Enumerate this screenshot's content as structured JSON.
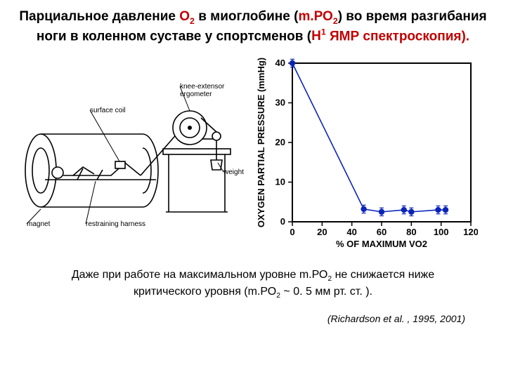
{
  "title": {
    "prefix": "Парциальное давление ",
    "o2": "О",
    "sub2": "2",
    "mid1": " в миоглобине (",
    "mpo2_m": "m.РО",
    "mid2": ") во время разгибания ноги в коленном суставе у спортсменов (",
    "h1_h": "Н",
    "h1_1": "1",
    "tail": " ЯМР спектроскопия).",
    "color_red": "#c00000"
  },
  "apparatus": {
    "labels": {
      "surface_coil": "surface coil",
      "knee_ext": "knee-extensor\nergometer",
      "weight_cup": "weight cup",
      "magnet": "magnet",
      "harness": "restraining harness"
    },
    "stroke": "#000000"
  },
  "chart": {
    "type": "scatter-line",
    "xlabel": "% OF MAXIMUM VO2",
    "ylabel": "OXYGEN PARTIAL PRESSURE  (mmHg)",
    "xlim": [
      0,
      120
    ],
    "ylim": [
      0,
      40
    ],
    "xticks": [
      0,
      20,
      40,
      60,
      80,
      100,
      120
    ],
    "yticks": [
      0,
      10,
      20,
      30,
      40
    ],
    "points": [
      {
        "x": 0,
        "y": 40
      },
      {
        "x": 48,
        "y": 3.2
      },
      {
        "x": 60,
        "y": 2.5
      },
      {
        "x": 75,
        "y": 3.0
      },
      {
        "x": 80,
        "y": 2.5
      },
      {
        "x": 98,
        "y": 3.0
      },
      {
        "x": 103,
        "y": 3.0
      }
    ],
    "err": 1.0,
    "marker_color": "#0b24b8",
    "line_color": "#0b24b8",
    "axis_color": "#000000",
    "tick_font": 13,
    "label_font": 13,
    "marker_r": 4.2,
    "line_w": 1.6,
    "err_w": 1.2
  },
  "caption": {
    "l1a": "Даже при работе на максимальном уровне ",
    "l1b": "m.РО",
    "l1c": " не снижается ниже",
    "l2a": "критического уровня (",
    "l2b": "m.РО",
    "l2c": " ~ 0. 5 мм рт. ст. )."
  },
  "reference": "(Richardson et al. , 1995, 2001)"
}
